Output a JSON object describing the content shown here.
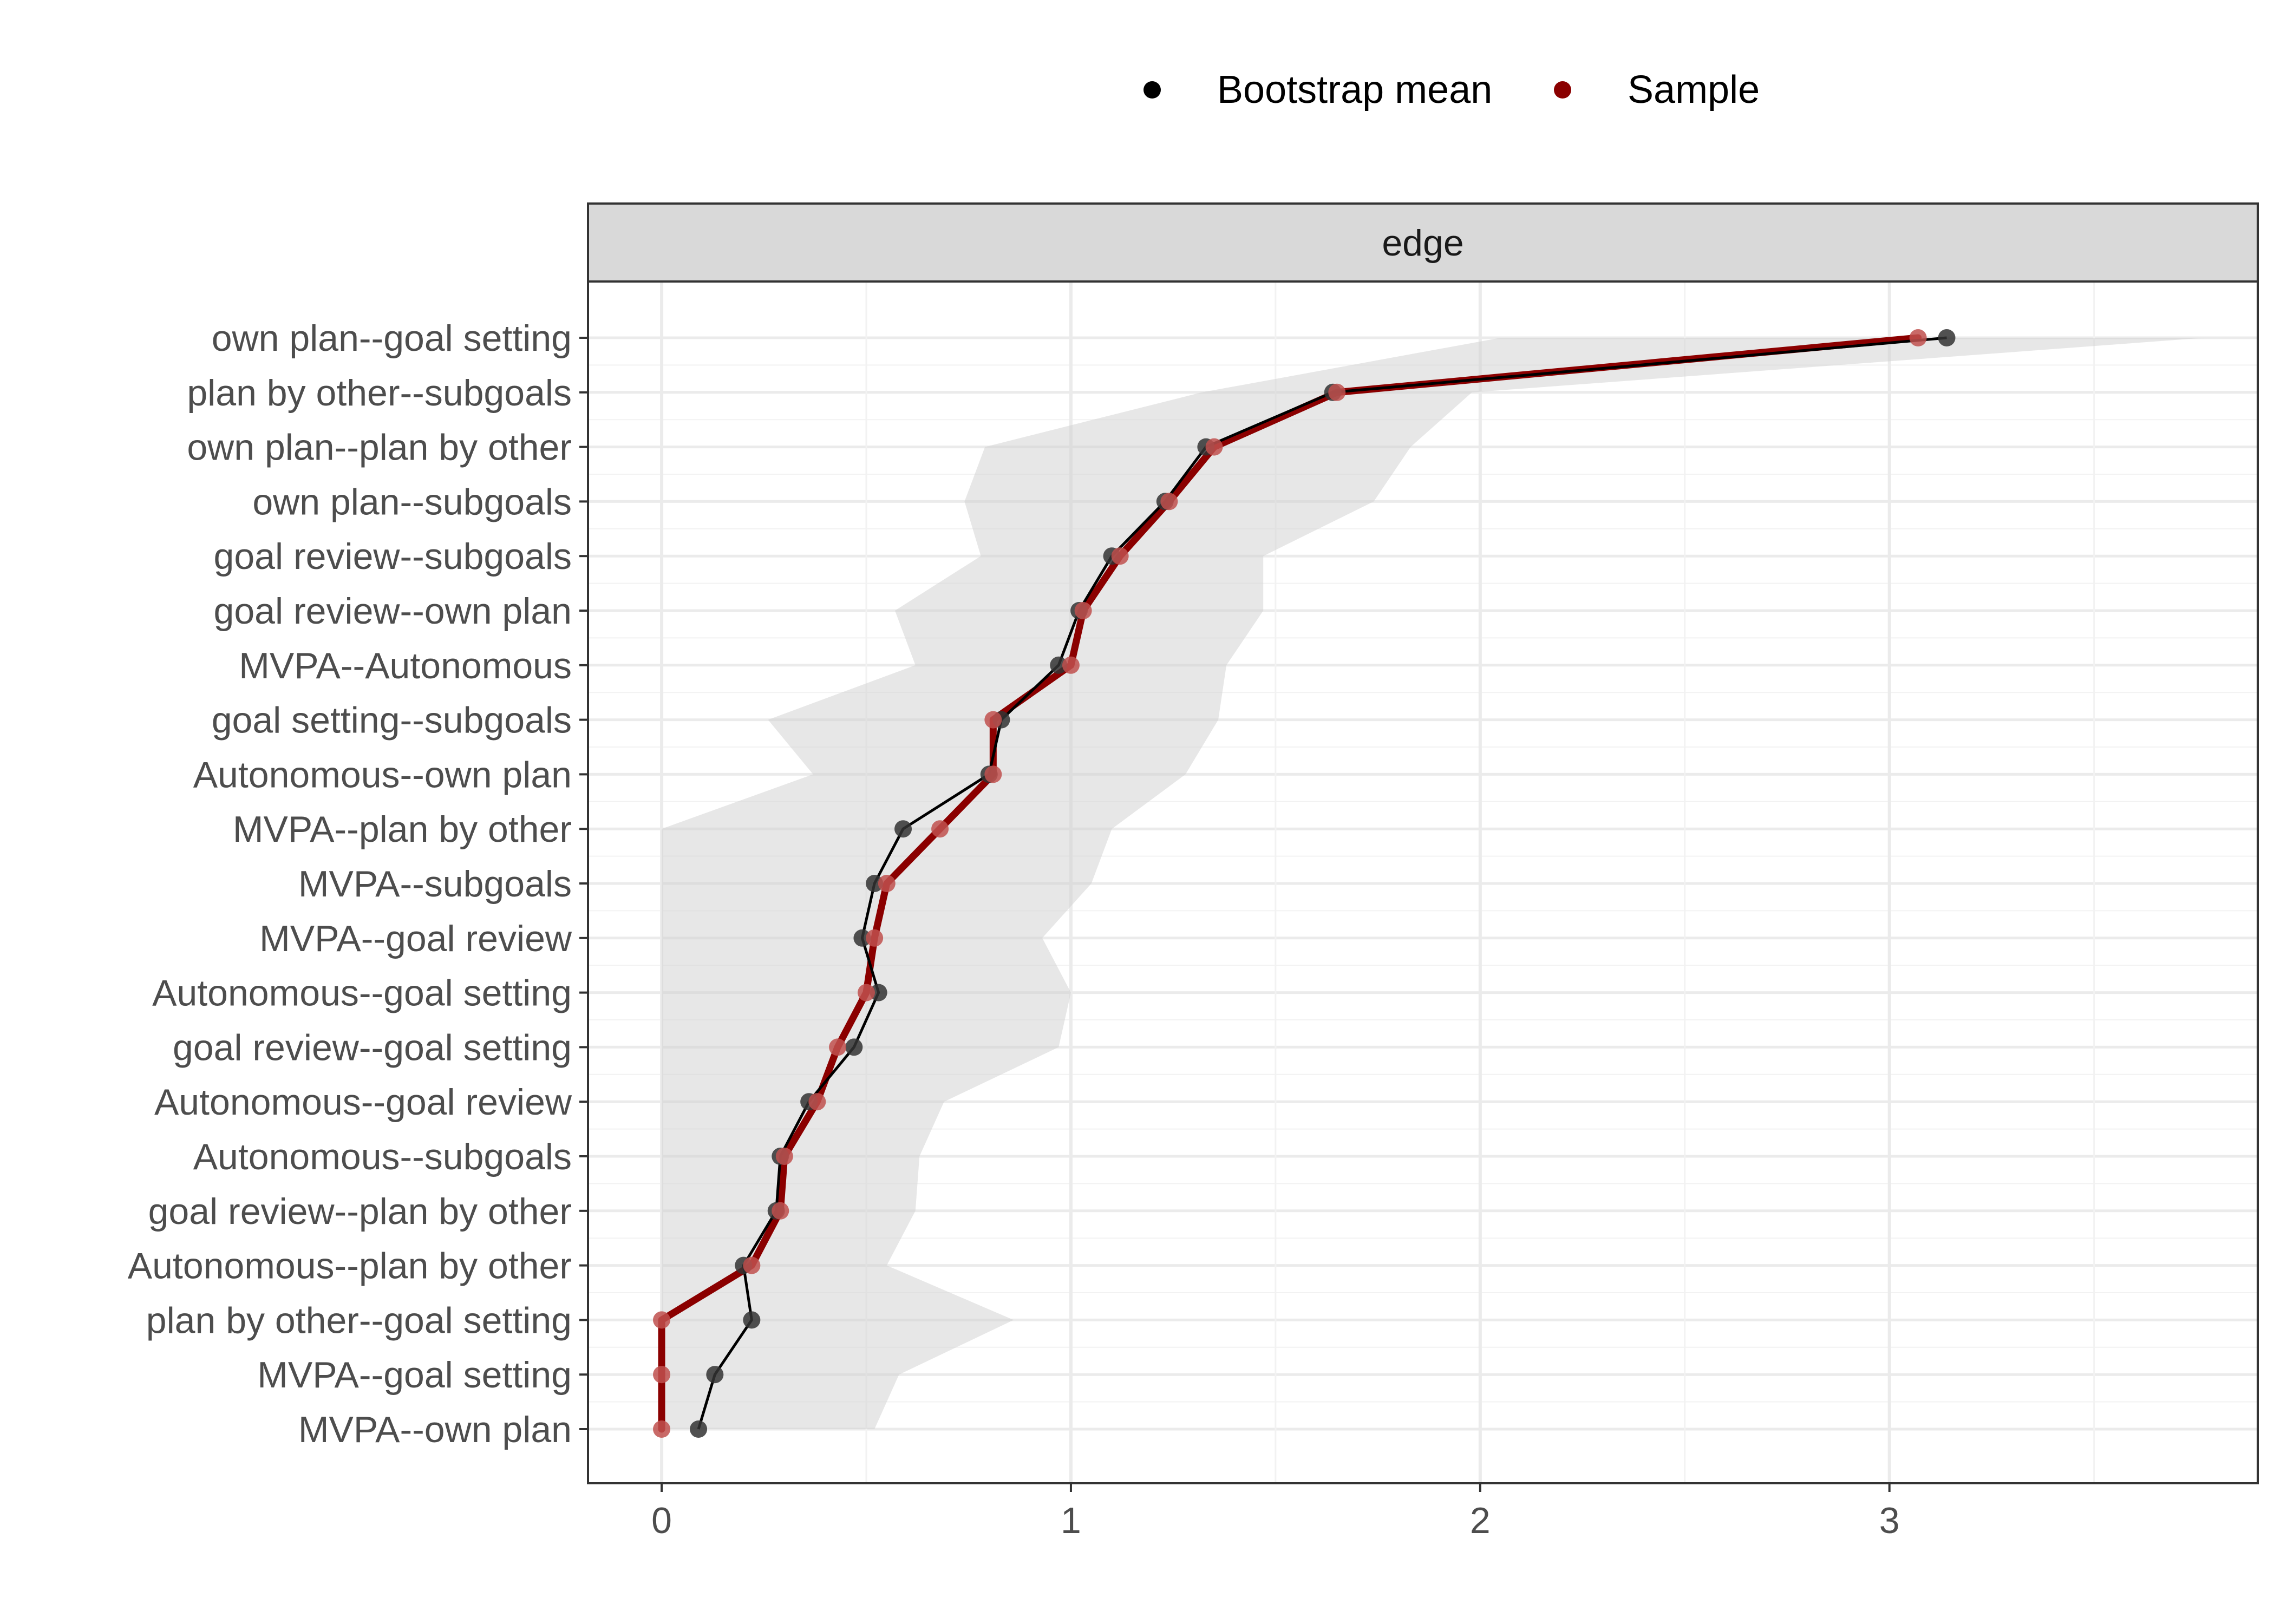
{
  "chart_data": {
    "type": "line",
    "facet": "edge",
    "categories": [
      "own plan--goal setting",
      "plan by other--subgoals",
      "own plan--plan by other",
      "own plan--subgoals",
      "goal review--subgoals",
      "goal review--own plan",
      "MVPA--Autonomous",
      "goal setting--subgoals",
      "Autonomous--own plan",
      "MVPA--plan by other",
      "MVPA--subgoals",
      "MVPA--goal review",
      "Autonomous--goal setting",
      "goal review--goal setting",
      "Autonomous--goal review",
      "Autonomous--subgoals",
      "goal review--plan by other",
      "Autonomous--plan by other",
      "plan by other--goal setting",
      "MVPA--goal setting",
      "MVPA--own plan"
    ],
    "series": [
      {
        "name": "Bootstrap mean",
        "color": "#000000",
        "values": [
          3.14,
          1.64,
          1.33,
          1.23,
          1.1,
          1.02,
          0.97,
          0.83,
          0.8,
          0.59,
          0.52,
          0.49,
          0.53,
          0.47,
          0.36,
          0.29,
          0.28,
          0.2,
          0.22,
          0.13,
          0.09
        ]
      },
      {
        "name": "Sample",
        "color": "#8b0000",
        "values": [
          3.07,
          1.65,
          1.35,
          1.24,
          1.12,
          1.03,
          1.0,
          0.81,
          0.81,
          0.68,
          0.55,
          0.52,
          0.5,
          0.43,
          0.38,
          0.3,
          0.29,
          0.22,
          0.0,
          0.0,
          0.0
        ]
      }
    ],
    "interval": {
      "lower": [
        2.05,
        1.32,
        0.79,
        0.74,
        0.78,
        0.57,
        0.62,
        0.26,
        0.37,
        0.0,
        0.0,
        0.0,
        0.0,
        0.0,
        0.0,
        0.0,
        0.0,
        0.0,
        0.0,
        0.0,
        0.0
      ],
      "upper": [
        3.77,
        1.98,
        1.83,
        1.74,
        1.47,
        1.47,
        1.38,
        1.36,
        1.28,
        1.1,
        1.05,
        0.93,
        1.0,
        0.97,
        0.69,
        0.63,
        0.62,
        0.55,
        0.86,
        0.58,
        0.52
      ],
      "color": "#cfcfcf"
    },
    "xticks": [
      "0",
      "1",
      "2",
      "3"
    ],
    "xlim": [
      -0.18,
      3.9
    ],
    "xlabel": "",
    "ylabel": "",
    "legend": {
      "position": "top",
      "entries": [
        "Bootstrap mean",
        "Sample"
      ]
    },
    "grid": true
  }
}
